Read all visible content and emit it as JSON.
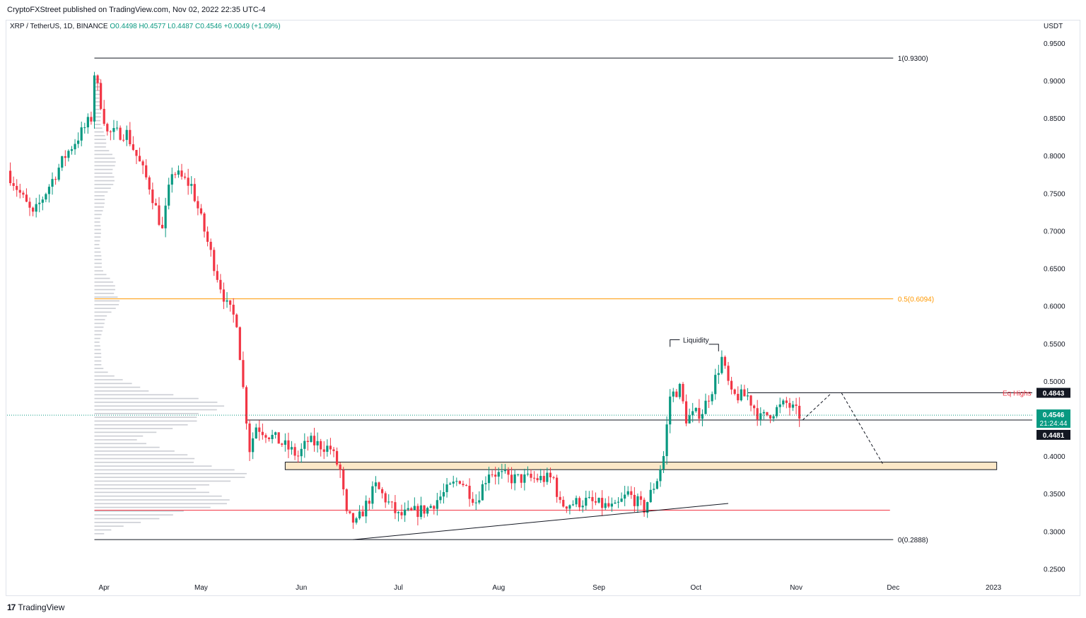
{
  "header": {
    "publisher": "CryptoFXStreet published on TradingView.com, Nov 02, 2022 22:35 UTC-4",
    "symbol": "XRP / TetherUS, 1D, BINANCE",
    "ohlc": "O0.4498  H0.4577  L0.4487  C0.4546  +0.0049 (+1.09%)",
    "currency": "USDT"
  },
  "footer": {
    "logo_mark": "17",
    "logo_text": "TradingView"
  },
  "colors": {
    "up": "#089981",
    "down": "#f23645",
    "fib_mid": "#ff9800",
    "volume_profile": "#b2b5be",
    "zone_fill": "#fce8c8",
    "zone_border": "#131722",
    "support_red": "#f23645"
  },
  "chart_data": {
    "type": "candlestick",
    "y_axis": {
      "min": 0.24,
      "max": 0.965,
      "ticks": [
        "0.9500",
        "0.9000",
        "0.8500",
        "0.8000",
        "0.7500",
        "0.7000",
        "0.6500",
        "0.6000",
        "0.5500",
        "0.5000",
        "0.4000",
        "0.3500",
        "0.3000",
        "0.2500"
      ],
      "position": "right"
    },
    "x_axis": {
      "ticks": [
        "Apr",
        "May",
        "Jun",
        "Jul",
        "Aug",
        "Sep",
        "Oct",
        "Nov",
        "Dec",
        "2023"
      ],
      "tick_dates": [
        "2022-04-01",
        "2022-05-01",
        "2022-06-01",
        "2022-07-01",
        "2022-08-01",
        "2022-09-01",
        "2022-10-01",
        "2022-11-01",
        "2022-12-01",
        "2023-01-01"
      ],
      "range": [
        "2022-03-02",
        "2023-01-13"
      ]
    },
    "key_points": [
      {
        "date": "2022-03-02",
        "price": 0.78
      },
      {
        "date": "2022-03-10",
        "price": 0.72
      },
      {
        "date": "2022-03-20",
        "price": 0.8
      },
      {
        "date": "2022-03-28",
        "price": 0.85
      },
      {
        "date": "2022-03-29",
        "price": 0.91
      },
      {
        "date": "2022-04-02",
        "price": 0.83
      },
      {
        "date": "2022-04-08",
        "price": 0.83
      },
      {
        "date": "2022-04-15",
        "price": 0.76
      },
      {
        "date": "2022-04-19",
        "price": 0.7
      },
      {
        "date": "2022-04-22",
        "price": 0.78
      },
      {
        "date": "2022-04-28",
        "price": 0.76
      },
      {
        "date": "2022-05-06",
        "price": 0.64
      },
      {
        "date": "2022-05-09",
        "price": 0.6
      },
      {
        "date": "2022-05-12",
        "price": 0.58
      },
      {
        "date": "2022-05-14",
        "price": 0.49
      },
      {
        "date": "2022-05-16",
        "price": 0.41
      },
      {
        "date": "2022-05-18",
        "price": 0.44
      },
      {
        "date": "2022-05-25",
        "price": 0.42
      },
      {
        "date": "2022-05-31",
        "price": 0.4
      },
      {
        "date": "2022-06-03",
        "price": 0.42
      },
      {
        "date": "2022-06-10",
        "price": 0.41
      },
      {
        "date": "2022-06-13",
        "price": 0.38
      },
      {
        "date": "2022-06-15",
        "price": 0.32
      },
      {
        "date": "2022-06-18",
        "price": 0.31
      },
      {
        "date": "2022-06-24",
        "price": 0.36
      },
      {
        "date": "2022-07-01",
        "price": 0.32
      },
      {
        "date": "2022-07-10",
        "price": 0.33
      },
      {
        "date": "2022-07-20",
        "price": 0.37
      },
      {
        "date": "2022-07-25",
        "price": 0.34
      },
      {
        "date": "2022-07-29",
        "price": 0.38
      },
      {
        "date": "2022-08-05",
        "price": 0.37
      },
      {
        "date": "2022-08-14",
        "price": 0.37
      },
      {
        "date": "2022-08-18",
        "price": 0.37
      },
      {
        "date": "2022-08-20",
        "price": 0.335
      },
      {
        "date": "2022-08-28",
        "price": 0.34
      },
      {
        "date": "2022-09-06",
        "price": 0.33
      },
      {
        "date": "2022-09-10",
        "price": 0.35
      },
      {
        "date": "2022-09-15",
        "price": 0.33
      },
      {
        "date": "2022-09-19",
        "price": 0.37
      },
      {
        "date": "2022-09-21",
        "price": 0.4
      },
      {
        "date": "2022-09-23",
        "price": 0.48
      },
      {
        "date": "2022-09-26",
        "price": 0.49
      },
      {
        "date": "2022-09-28",
        "price": 0.45
      },
      {
        "date": "2022-10-03",
        "price": 0.46
      },
      {
        "date": "2022-10-06",
        "price": 0.49
      },
      {
        "date": "2022-10-09",
        "price": 0.53
      },
      {
        "date": "2022-10-12",
        "price": 0.48
      },
      {
        "date": "2022-10-17",
        "price": 0.48
      },
      {
        "date": "2022-10-21",
        "price": 0.45
      },
      {
        "date": "2022-10-25",
        "price": 0.46
      },
      {
        "date": "2022-10-29",
        "price": 0.47
      },
      {
        "date": "2022-11-02",
        "price": 0.4546
      }
    ],
    "horizontal_levels": [
      {
        "price": 0.93,
        "label": "1(0.9300)",
        "color": "#131722"
      },
      {
        "price": 0.6094,
        "label": "0.5(0.6094)",
        "color": "#ff9800"
      },
      {
        "price": 0.2888,
        "label": "0(0.2888)",
        "color": "#131722"
      },
      {
        "price": 0.4843,
        "label": "Eq Highs",
        "color": "#131722",
        "label_color": "#f23645"
      },
      {
        "price": 0.4481,
        "label": "",
        "color": "#131722"
      },
      {
        "price": 0.328,
        "label": "",
        "color": "#f23645"
      }
    ],
    "price_badges": [
      {
        "value": "0.4843",
        "bg": "#131722",
        "fg": "#ffffff"
      },
      {
        "value": "0.4546",
        "sub": "21:24:44",
        "bg": "#089981",
        "fg": "#ffffff"
      },
      {
        "value": "0.4481",
        "bg": "#131722",
        "fg": "#ffffff"
      }
    ],
    "zone": {
      "top": 0.392,
      "bottom": 0.382
    },
    "annotations": [
      {
        "text": "Liquidity",
        "price": 0.555
      }
    ],
    "trendline": [
      {
        "date": "2022-06-17",
        "price": 0.2888
      },
      {
        "date": "2022-10-11",
        "price": 0.337
      }
    ],
    "projection": [
      {
        "date": "2022-11-03",
        "price": 0.4481
      },
      {
        "date": "2022-11-12",
        "price": 0.4843
      },
      {
        "date": "2022-11-15",
        "price": 0.4843
      },
      {
        "date": "2022-11-28",
        "price": 0.388
      }
    ]
  }
}
